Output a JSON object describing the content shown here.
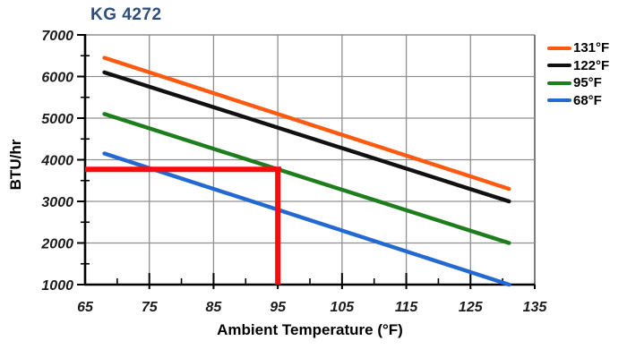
{
  "title": "KG 4272",
  "title_color": "#2e4e7c",
  "chart_data": {
    "type": "line",
    "title": "KG 4272",
    "xlabel": "Ambient Temperature (°F)",
    "ylabel": "BTU/hr",
    "xlim": [
      65,
      135
    ],
    "ylim": [
      1000,
      7000
    ],
    "x_major_ticks": [
      65,
      75,
      85,
      95,
      105,
      115,
      125,
      135
    ],
    "y_major_ticks": [
      1000,
      2000,
      3000,
      4000,
      5000,
      6000,
      7000
    ],
    "x_minor_step": 5,
    "y_minor_step": 500,
    "grid": true,
    "legend_position": "right-outside",
    "gridline_color": "#8f8f8f",
    "axis_color": "#000000",
    "series": [
      {
        "name": "131°F",
        "color": "#ff5a0f",
        "x": [
          68,
          131
        ],
        "values": [
          6450,
          3300
        ]
      },
      {
        "name": "122°F",
        "color": "#111111",
        "x": [
          68,
          131
        ],
        "values": [
          6100,
          3000
        ]
      },
      {
        "name": "95°F",
        "color": "#1e7e1e",
        "x": [
          68,
          131
        ],
        "values": [
          5100,
          2000
        ]
      },
      {
        "name": "68°F",
        "color": "#2469d2",
        "x": [
          68,
          131
        ],
        "values": [
          4150,
          1000
        ]
      }
    ],
    "annotation": {
      "type": "crosshair",
      "color": "#f80c0c",
      "ambient": 95,
      "btu_hr": 3770,
      "description": "red reference lines marking about 3770 BTU/hr on the 95°F curve at 95°F ambient"
    }
  }
}
